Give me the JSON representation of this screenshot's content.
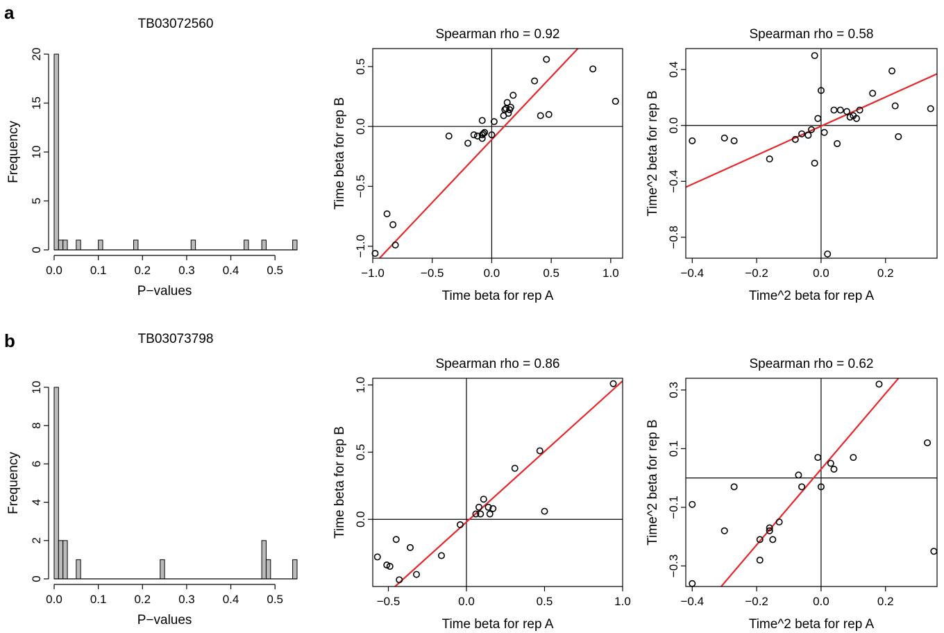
{
  "panel_labels": [
    "a",
    "b"
  ],
  "chart_data": [
    {
      "type": "bar",
      "title": "TB03072560",
      "xlabel": "P−values",
      "ylabel": "Frequency",
      "xlim": [
        0,
        0.55
      ],
      "ylim": [
        0,
        20
      ],
      "x_ticks": [
        0.0,
        0.1,
        0.2,
        0.3,
        0.4,
        0.5
      ],
      "x_tick_labels": [
        "0.0",
        "0.1",
        "0.2",
        "0.3",
        "0.4",
        "0.5"
      ],
      "y_ticks": [
        0,
        5,
        10,
        15,
        20
      ],
      "y_tick_labels": [
        "0",
        "5",
        "10",
        "15",
        "20"
      ],
      "bin_width": 0.01,
      "bins": [
        {
          "start": 0.0,
          "count": 20
        },
        {
          "start": 0.01,
          "count": 1
        },
        {
          "start": 0.02,
          "count": 1
        },
        {
          "start": 0.05,
          "count": 1
        },
        {
          "start": 0.1,
          "count": 1
        },
        {
          "start": 0.18,
          "count": 1
        },
        {
          "start": 0.31,
          "count": 1
        },
        {
          "start": 0.43,
          "count": 1
        },
        {
          "start": 0.47,
          "count": 1
        },
        {
          "start": 0.54,
          "count": 1
        }
      ],
      "bar_color": "#bbbbbb"
    },
    {
      "type": "scatter",
      "title": "Spearman rho =  0.92",
      "xlabel": "Time beta for rep A",
      "ylabel": "Time beta for rep B",
      "xlim": [
        -1.0,
        1.1
      ],
      "ylim": [
        -1.1,
        0.65
      ],
      "x_ticks": [
        -1.0,
        -0.5,
        0.0,
        0.5,
        1.0
      ],
      "x_tick_labels": [
        "−1.0",
        "−0.5",
        "0.0",
        "0.5",
        "1.0"
      ],
      "y_ticks": [
        -1.0,
        -0.5,
        0.0,
        0.5
      ],
      "y_tick_labels": [
        "−1.0",
        "−0.5",
        "0.0",
        "0.5"
      ],
      "fit_line": {
        "slope": 1.05,
        "intercept": -0.11,
        "color": "#e8262a"
      },
      "points": [
        [
          -0.98,
          -1.06
        ],
        [
          -0.88,
          -0.73
        ],
        [
          -0.83,
          -0.82
        ],
        [
          -0.81,
          -0.99
        ],
        [
          -0.36,
          -0.08
        ],
        [
          -0.2,
          -0.14
        ],
        [
          -0.15,
          -0.07
        ],
        [
          -0.12,
          -0.08
        ],
        [
          -0.08,
          -0.1
        ],
        [
          -0.08,
          -0.07
        ],
        [
          -0.07,
          -0.06
        ],
        [
          -0.06,
          -0.05
        ],
        [
          -0.08,
          0.05
        ],
        [
          0.0,
          -0.07
        ],
        [
          0.02,
          0.04
        ],
        [
          0.1,
          0.09
        ],
        [
          0.11,
          0.14
        ],
        [
          0.12,
          0.15
        ],
        [
          0.13,
          0.2
        ],
        [
          0.14,
          0.11
        ],
        [
          0.15,
          0.14
        ],
        [
          0.16,
          0.16
        ],
        [
          0.18,
          0.26
        ],
        [
          0.36,
          0.38
        ],
        [
          0.41,
          0.09
        ],
        [
          0.46,
          0.56
        ],
        [
          0.48,
          0.1
        ],
        [
          0.85,
          0.48
        ],
        [
          1.04,
          0.21
        ]
      ]
    },
    {
      "type": "scatter",
      "title": "Spearman rho =  0.58",
      "xlabel": "Time^2 beta for rep A",
      "ylabel": "Time^2 beta for rep B",
      "xlim": [
        -0.42,
        0.36
      ],
      "ylim": [
        -0.95,
        0.55
      ],
      "x_ticks": [
        -0.4,
        -0.2,
        0.0,
        0.2
      ],
      "x_tick_labels": [
        "−0.4",
        "−0.2",
        "0.0",
        "0.2"
      ],
      "y_ticks": [
        -0.8,
        -0.4,
        0.0,
        0.4
      ],
      "y_tick_labels": [
        "−0.8",
        "−0.4",
        "0.0",
        "0.4"
      ],
      "fit_line": {
        "slope": 1.04,
        "intercept": -0.005,
        "color": "#e8262a"
      },
      "points": [
        [
          -0.4,
          -0.11
        ],
        [
          -0.3,
          -0.09
        ],
        [
          -0.27,
          -0.11
        ],
        [
          -0.16,
          -0.24
        ],
        [
          -0.08,
          -0.1
        ],
        [
          -0.06,
          -0.06
        ],
        [
          -0.04,
          -0.07
        ],
        [
          -0.03,
          -0.03
        ],
        [
          -0.01,
          0.05
        ],
        [
          -0.02,
          0.5
        ],
        [
          -0.02,
          -0.27
        ],
        [
          0.0,
          0.25
        ],
        [
          0.01,
          -0.05
        ],
        [
          0.02,
          -0.92
        ],
        [
          0.04,
          0.11
        ],
        [
          0.05,
          -0.13
        ],
        [
          0.06,
          0.11
        ],
        [
          0.08,
          0.1
        ],
        [
          0.09,
          0.06
        ],
        [
          0.1,
          0.07
        ],
        [
          0.11,
          0.05
        ],
        [
          0.12,
          0.11
        ],
        [
          0.16,
          0.23
        ],
        [
          0.22,
          0.39
        ],
        [
          0.23,
          0.14
        ],
        [
          0.24,
          -0.08
        ],
        [
          0.34,
          0.12
        ]
      ]
    },
    {
      "type": "bar",
      "title": "TB03073798",
      "xlabel": "P−values",
      "ylabel": "Frequency",
      "xlim": [
        0,
        0.55
      ],
      "ylim": [
        0,
        10
      ],
      "x_ticks": [
        0.0,
        0.1,
        0.2,
        0.3,
        0.4,
        0.5
      ],
      "x_tick_labels": [
        "0.0",
        "0.1",
        "0.2",
        "0.3",
        "0.4",
        "0.5"
      ],
      "y_ticks": [
        0,
        2,
        4,
        6,
        8,
        10
      ],
      "y_tick_labels": [
        "0",
        "2",
        "4",
        "6",
        "8",
        "10"
      ],
      "bin_width": 0.01,
      "bins": [
        {
          "start": 0.0,
          "count": 10
        },
        {
          "start": 0.01,
          "count": 2
        },
        {
          "start": 0.02,
          "count": 2
        },
        {
          "start": 0.05,
          "count": 1
        },
        {
          "start": 0.24,
          "count": 1
        },
        {
          "start": 0.47,
          "count": 2
        },
        {
          "start": 0.48,
          "count": 1
        },
        {
          "start": 0.54,
          "count": 1
        }
      ],
      "bar_color": "#bbbbbb"
    },
    {
      "type": "scatter",
      "title": "Spearman rho =  0.86",
      "xlabel": "Time beta for rep A",
      "ylabel": "Time beta for rep B",
      "xlim": [
        -0.6,
        1.0
      ],
      "ylim": [
        -0.5,
        1.05
      ],
      "x_ticks": [
        -0.5,
        0.0,
        0.5,
        1.0
      ],
      "x_tick_labels": [
        "−0.5",
        "0.0",
        "0.5",
        "1.0"
      ],
      "y_ticks": [
        0.0,
        0.5,
        1.0
      ],
      "y_tick_labels": [
        "0.0",
        "0.5",
        "1.0"
      ],
      "fit_line": {
        "slope": 1.05,
        "intercept": -0.02,
        "color": "#e8262a"
      },
      "points": [
        [
          -0.57,
          -0.28
        ],
        [
          -0.51,
          -0.34
        ],
        [
          -0.49,
          -0.35
        ],
        [
          -0.45,
          -0.15
        ],
        [
          -0.43,
          -0.45
        ],
        [
          -0.36,
          -0.21
        ],
        [
          -0.32,
          -0.41
        ],
        [
          -0.16,
          -0.27
        ],
        [
          -0.04,
          -0.04
        ],
        [
          0.06,
          0.04
        ],
        [
          0.08,
          0.09
        ],
        [
          0.09,
          0.04
        ],
        [
          0.11,
          0.15
        ],
        [
          0.14,
          0.09
        ],
        [
          0.15,
          0.04
        ],
        [
          0.17,
          0.08
        ],
        [
          0.31,
          0.38
        ],
        [
          0.47,
          0.51
        ],
        [
          0.5,
          0.06
        ],
        [
          0.94,
          1.01
        ]
      ]
    },
    {
      "type": "scatter",
      "title": "Spearman rho =  0.62",
      "xlabel": "Time^2 beta for rep A",
      "ylabel": "Time^2 beta for rep B",
      "xlim": [
        -0.42,
        0.36
      ],
      "ylim": [
        -0.37,
        0.34
      ],
      "x_ticks": [
        -0.4,
        -0.2,
        0.0,
        0.2
      ],
      "x_tick_labels": [
        "−0.4",
        "−0.2",
        "0.0",
        "0.2"
      ],
      "y_ticks": [
        -0.3,
        -0.1,
        0.1,
        0.3
      ],
      "y_tick_labels": [
        "−0.3",
        "−0.1",
        "0.1",
        "0.3"
      ],
      "fit_line": {
        "slope": 1.29,
        "intercept": 0.03,
        "color": "#e8262a"
      },
      "points": [
        [
          -0.4,
          -0.36
        ],
        [
          -0.4,
          -0.09
        ],
        [
          -0.3,
          -0.18
        ],
        [
          -0.27,
          -0.03
        ],
        [
          -0.19,
          -0.21
        ],
        [
          -0.19,
          -0.28
        ],
        [
          -0.16,
          -0.17
        ],
        [
          -0.16,
          -0.18
        ],
        [
          -0.15,
          -0.21
        ],
        [
          -0.13,
          -0.15
        ],
        [
          -0.07,
          0.01
        ],
        [
          -0.06,
          -0.03
        ],
        [
          -0.01,
          0.07
        ],
        [
          0.0,
          -0.03
        ],
        [
          0.03,
          0.05
        ],
        [
          0.04,
          0.03
        ],
        [
          0.1,
          0.07
        ],
        [
          0.18,
          0.32
        ],
        [
          0.33,
          0.12
        ],
        [
          0.35,
          -0.25
        ]
      ]
    }
  ]
}
